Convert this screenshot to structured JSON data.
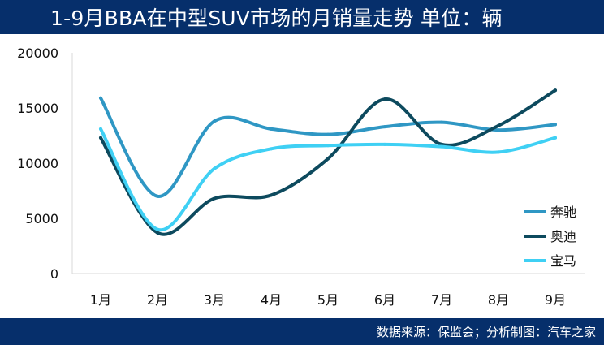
{
  "header": {
    "title": "1-9月BBA在中型SUV市场的月销量走势  单位：辆"
  },
  "footer": {
    "source": "数据来源：保监会；分析制图：汽车之家"
  },
  "chart_data": {
    "type": "line",
    "title": "1-9月BBA在中型SUV市场的月销量走势  单位：辆",
    "categories": [
      "1月",
      "2月",
      "3月",
      "4月",
      "5月",
      "6月",
      "7月",
      "8月",
      "9月"
    ],
    "ylim": [
      0,
      20000
    ],
    "yticks": [
      0,
      5000,
      10000,
      15000,
      20000
    ],
    "grid": false,
    "legend": "right",
    "series": [
      {
        "name": "奔驰",
        "color": "#2f97c4",
        "values": [
          15900,
          7000,
          13800,
          13100,
          12600,
          13300,
          13700,
          13000,
          13500
        ]
      },
      {
        "name": "奥迪",
        "color": "#0d4a5e",
        "values": [
          12300,
          3700,
          6800,
          7100,
          10400,
          15800,
          11700,
          13400,
          16600
        ]
      },
      {
        "name": "宝马",
        "color": "#3fd0f4",
        "values": [
          13100,
          4000,
          9500,
          11300,
          11600,
          11700,
          11500,
          11000,
          12300
        ]
      }
    ]
  }
}
